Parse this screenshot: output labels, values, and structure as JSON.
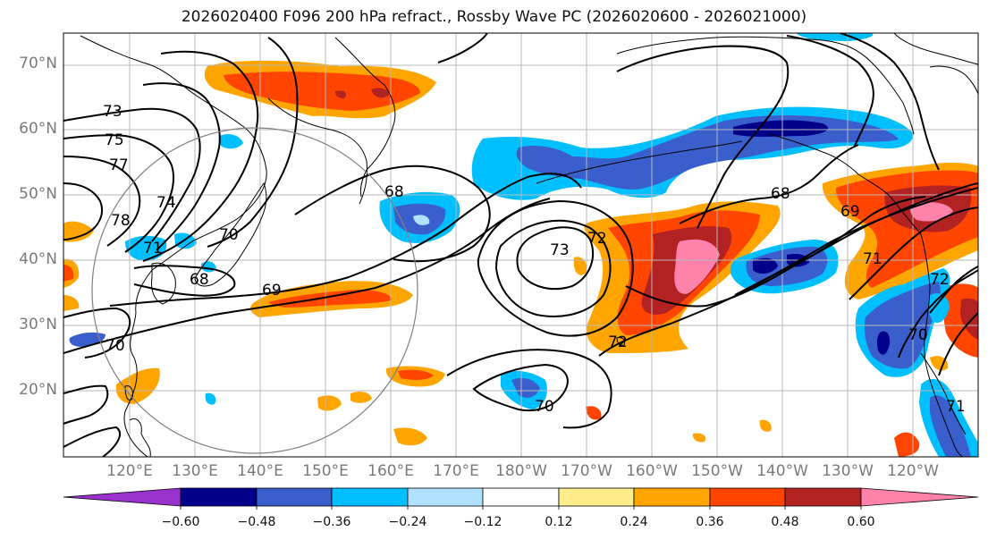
{
  "title": "2026020400 F096 200 hPa refract., Rossby Wave PC (2026020600 - 2026021000)",
  "lat_labels": [
    "70°N",
    "60°N",
    "50°N",
    "40°N",
    "30°N",
    "20°N"
  ],
  "lon_labels": [
    "120°E",
    "130°E",
    "140°E",
    "150°E",
    "160°E",
    "170°E",
    "180°W",
    "170°W",
    "160°W",
    "150°W",
    "140°W",
    "130°W",
    "120°W"
  ],
  "colorbar": {
    "ticks": [
      "−0.60",
      "−0.48",
      "−0.36",
      "−0.24",
      "−0.12",
      "0.12",
      "0.24",
      "0.36",
      "0.48",
      "0.60"
    ],
    "colors": [
      "#9932cc",
      "#00008b",
      "#3a5fcd",
      "#00bfff",
      "#b0e2ff",
      "#ffffff",
      "#ffec8b",
      "#ffa500",
      "#ff4500",
      "#b22222",
      "#ff82ab"
    ]
  },
  "contour_labels": [
    "73",
    "75",
    "77",
    "78",
    "74",
    "71",
    "70",
    "68",
    "69",
    "70",
    "68",
    "73",
    "72",
    "72",
    "70",
    "68",
    "69",
    "71",
    "72",
    "70",
    "71"
  ],
  "colors": {
    "land": "#ffffff",
    "coast": "#000000",
    "contour": "#000000",
    "grid": "#b8b8b8",
    "circle": "#808080"
  }
}
